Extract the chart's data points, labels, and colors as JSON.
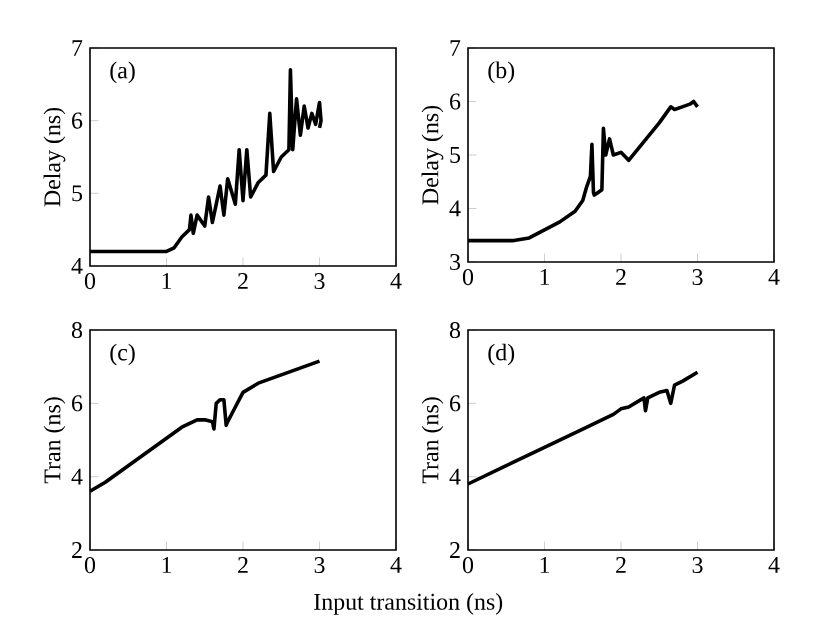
{
  "chart_data": [
    {
      "type": "line",
      "ylabel": "Delay (ns)",
      "annotations": [
        "(a)"
      ],
      "xlim": [
        0,
        4
      ],
      "ylim": [
        4,
        7
      ],
      "xticks": [
        0,
        1,
        2,
        3,
        4
      ],
      "yticks": [
        4,
        5,
        6,
        7
      ],
      "grid": false,
      "series": [
        {
          "color": "#000000",
          "x": [
            0,
            0.5,
            1.0,
            1.1,
            1.2,
            1.3,
            1.32,
            1.35,
            1.4,
            1.5,
            1.55,
            1.6,
            1.7,
            1.75,
            1.8,
            1.9,
            1.95,
            2.0,
            2.05,
            2.1,
            2.2,
            2.3,
            2.35,
            2.4,
            2.5,
            2.6,
            2.62,
            2.65,
            2.7,
            2.75,
            2.8,
            2.85,
            2.9,
            2.95,
            3.0,
            3.02,
            3.0
          ],
          "values": [
            4.2,
            4.2,
            4.2,
            4.25,
            4.4,
            4.5,
            4.7,
            4.45,
            4.7,
            4.55,
            4.95,
            4.6,
            5.1,
            4.7,
            5.2,
            4.85,
            5.6,
            4.9,
            5.6,
            4.95,
            5.15,
            5.25,
            6.1,
            5.3,
            5.5,
            5.6,
            6.7,
            5.6,
            6.3,
            5.8,
            6.2,
            5.9,
            6.1,
            5.95,
            6.25,
            6.0,
            5.9
          ]
        }
      ]
    },
    {
      "type": "line",
      "ylabel": "Delay (ns)",
      "annotations": [
        "(b)"
      ],
      "xlim": [
        0,
        4
      ],
      "ylim": [
        3,
        7
      ],
      "xticks": [
        0,
        1,
        2,
        3,
        4
      ],
      "yticks": [
        3,
        4,
        5,
        6,
        7
      ],
      "grid": false,
      "series": [
        {
          "color": "#000000",
          "x": [
            0,
            0.3,
            0.6,
            0.8,
            1.0,
            1.2,
            1.4,
            1.5,
            1.55,
            1.6,
            1.62,
            1.64,
            1.65,
            1.7,
            1.75,
            1.77,
            1.8,
            1.85,
            1.9,
            2.0,
            2.1,
            2.3,
            2.5,
            2.65,
            2.7,
            2.8,
            2.9,
            2.95,
            3.0
          ],
          "values": [
            3.4,
            3.4,
            3.4,
            3.45,
            3.6,
            3.75,
            3.95,
            4.15,
            4.4,
            4.6,
            5.2,
            4.3,
            4.25,
            4.3,
            4.35,
            5.5,
            5.0,
            5.3,
            5.0,
            5.05,
            4.9,
            5.25,
            5.6,
            5.9,
            5.85,
            5.9,
            5.95,
            6.0,
            5.9
          ]
        }
      ]
    },
    {
      "type": "line",
      "ylabel": "Tran (ns)",
      "xlabel": "Input transition (ns)",
      "annotations": [
        "(c)"
      ],
      "xlim": [
        0,
        4
      ],
      "ylim": [
        2,
        8
      ],
      "xticks": [
        0,
        1,
        2,
        3,
        4
      ],
      "yticks": [
        2,
        4,
        6,
        8
      ],
      "grid": false,
      "series": [
        {
          "color": "#000000",
          "x": [
            0,
            0.2,
            0.4,
            0.6,
            0.8,
            1.0,
            1.2,
            1.4,
            1.5,
            1.6,
            1.62,
            1.65,
            1.7,
            1.75,
            1.78,
            1.8,
            1.9,
            2.0,
            2.2,
            2.4,
            2.6,
            2.8,
            3.0
          ],
          "values": [
            3.6,
            3.85,
            4.15,
            4.45,
            4.75,
            5.05,
            5.35,
            5.55,
            5.55,
            5.5,
            5.3,
            6.0,
            6.1,
            6.1,
            5.4,
            5.5,
            5.9,
            6.3,
            6.55,
            6.7,
            6.85,
            7.0,
            7.15
          ]
        }
      ]
    },
    {
      "type": "line",
      "ylabel": "Tran (ns)",
      "annotations": [
        "(d)"
      ],
      "xlim": [
        0,
        4
      ],
      "ylim": [
        2,
        8
      ],
      "xticks": [
        0,
        1,
        2,
        3,
        4
      ],
      "yticks": [
        2,
        4,
        6,
        8
      ],
      "grid": false,
      "series": [
        {
          "color": "#000000",
          "x": [
            0,
            0.5,
            1.0,
            1.5,
            1.9,
            2.0,
            2.1,
            2.3,
            2.32,
            2.35,
            2.5,
            2.6,
            2.65,
            2.7,
            2.8,
            3.0
          ],
          "values": [
            3.8,
            4.3,
            4.8,
            5.3,
            5.7,
            5.85,
            5.9,
            6.15,
            5.8,
            6.15,
            6.3,
            6.35,
            6.0,
            6.5,
            6.6,
            6.85
          ]
        }
      ]
    }
  ]
}
